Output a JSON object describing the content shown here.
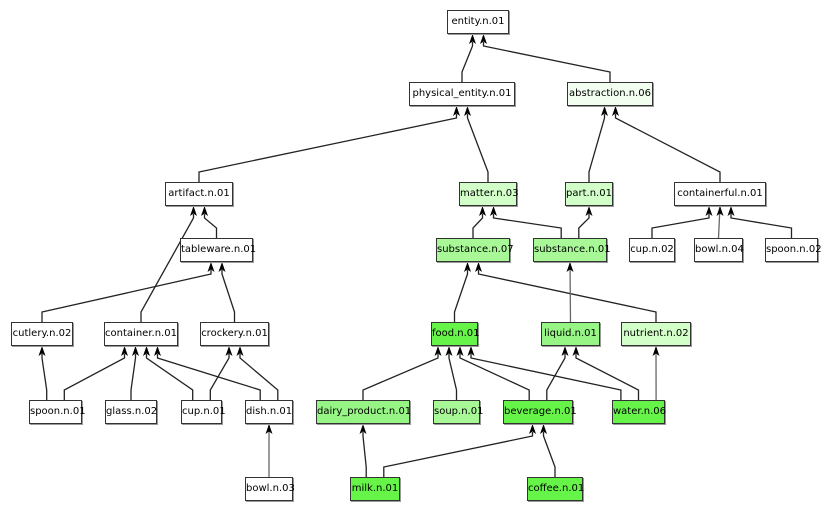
{
  "colors": {
    "white": "#ffffff",
    "lightest": "#f2fff0",
    "light": "#d2ffc8",
    "medium": "#a8f898",
    "strong": "#96f584",
    "strongest": "#66f448"
  },
  "nodes": [
    {
      "id": "entity",
      "label": "entity.n.01",
      "color": "white"
    },
    {
      "id": "physical_entity",
      "label": "physical_entity.n.01",
      "color": "white"
    },
    {
      "id": "abstraction",
      "label": "abstraction.n.06",
      "color": "lightest"
    },
    {
      "id": "artifact",
      "label": "artifact.n.01",
      "color": "white"
    },
    {
      "id": "matter",
      "label": "matter.n.03",
      "color": "light"
    },
    {
      "id": "part",
      "label": "part.n.01",
      "color": "light"
    },
    {
      "id": "containerful",
      "label": "containerful.n.01",
      "color": "white"
    },
    {
      "id": "tableware",
      "label": "tableware.n.01",
      "color": "white"
    },
    {
      "id": "substance07",
      "label": "substance.n.07",
      "color": "medium"
    },
    {
      "id": "substance01",
      "label": "substance.n.01",
      "color": "medium"
    },
    {
      "id": "cup02",
      "label": "cup.n.02",
      "color": "white"
    },
    {
      "id": "bowl04",
      "label": "bowl.n.04",
      "color": "white"
    },
    {
      "id": "spoon02",
      "label": "spoon.n.02",
      "color": "white"
    },
    {
      "id": "cutlery",
      "label": "cutlery.n.02",
      "color": "white"
    },
    {
      "id": "container",
      "label": "container.n.01",
      "color": "white"
    },
    {
      "id": "crockery",
      "label": "crockery.n.01",
      "color": "white"
    },
    {
      "id": "food",
      "label": "food.n.01",
      "color": "strongest"
    },
    {
      "id": "liquid",
      "label": "liquid.n.01",
      "color": "strong"
    },
    {
      "id": "nutrient",
      "label": "nutrient.n.02",
      "color": "light"
    },
    {
      "id": "spoon01",
      "label": "spoon.n.01",
      "color": "white"
    },
    {
      "id": "glass",
      "label": "glass.n.02",
      "color": "white"
    },
    {
      "id": "cup01",
      "label": "cup.n.01",
      "color": "white"
    },
    {
      "id": "dish",
      "label": "dish.n.01",
      "color": "white"
    },
    {
      "id": "dairy",
      "label": "dairy_product.n.01",
      "color": "strong"
    },
    {
      "id": "soup",
      "label": "soup.n.01",
      "color": "medium"
    },
    {
      "id": "beverage",
      "label": "beverage.n.01",
      "color": "strongest"
    },
    {
      "id": "water",
      "label": "water.n.06",
      "color": "strongest"
    },
    {
      "id": "bowl03",
      "label": "bowl.n.03",
      "color": "white"
    },
    {
      "id": "milk",
      "label": "milk.n.01",
      "color": "strongest"
    },
    {
      "id": "coffee",
      "label": "coffee.n.01",
      "color": "strongest"
    }
  ],
  "edges": [
    [
      "physical_entity",
      "entity"
    ],
    [
      "abstraction",
      "entity"
    ],
    [
      "artifact",
      "physical_entity"
    ],
    [
      "matter",
      "physical_entity"
    ],
    [
      "part",
      "abstraction"
    ],
    [
      "containerful",
      "abstraction"
    ],
    [
      "tableware",
      "artifact"
    ],
    [
      "container",
      "artifact"
    ],
    [
      "substance07",
      "matter"
    ],
    [
      "substance01",
      "matter"
    ],
    [
      "substance01",
      "part"
    ],
    [
      "cup02",
      "containerful"
    ],
    [
      "bowl04",
      "containerful"
    ],
    [
      "spoon02",
      "containerful"
    ],
    [
      "cutlery",
      "tableware"
    ],
    [
      "crockery",
      "tableware"
    ],
    [
      "food",
      "substance07"
    ],
    [
      "nutrient",
      "substance07"
    ],
    [
      "liquid",
      "substance01"
    ],
    [
      "spoon01",
      "cutlery"
    ],
    [
      "spoon01",
      "container"
    ],
    [
      "glass",
      "container"
    ],
    [
      "cup01",
      "container"
    ],
    [
      "dish",
      "container"
    ],
    [
      "cup01",
      "crockery"
    ],
    [
      "dish",
      "crockery"
    ],
    [
      "dairy",
      "food"
    ],
    [
      "soup",
      "food"
    ],
    [
      "beverage",
      "food"
    ],
    [
      "water",
      "food"
    ],
    [
      "beverage",
      "liquid"
    ],
    [
      "water",
      "liquid"
    ],
    [
      "water",
      "nutrient"
    ],
    [
      "bowl03",
      "dish"
    ],
    [
      "milk",
      "dairy"
    ],
    [
      "milk",
      "beverage"
    ],
    [
      "coffee",
      "beverage"
    ]
  ]
}
